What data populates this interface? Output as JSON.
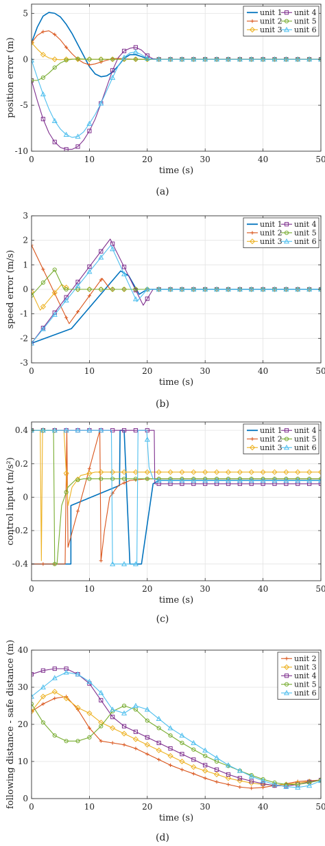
{
  "chart_data": [
    {
      "id": "a",
      "type": "line",
      "caption": "(a)",
      "xlabel": "time (s)",
      "ylabel": "position error (m)",
      "xlim": [
        0,
        50
      ],
      "ylim": [
        -10,
        6
      ],
      "xticks": [
        0,
        10,
        20,
        30,
        40,
        50
      ],
      "yticks": [
        -10,
        -5,
        0,
        5
      ],
      "grid": true,
      "legend": {
        "placement": "top-right",
        "columns": 2,
        "order": [
          "unit 1",
          "unit 4",
          "unit 2",
          "unit 5",
          "unit 3",
          "unit 6"
        ]
      },
      "series": [
        {
          "name": "unit 1",
          "color": "#0072BD",
          "marker": "none",
          "x": [
            0,
            1,
            2,
            3,
            4,
            5,
            6,
            7,
            8,
            9,
            10,
            11,
            12,
            13,
            14,
            15,
            16,
            17,
            18,
            19,
            20,
            22,
            50
          ],
          "y": [
            1.8,
            3.5,
            4.7,
            5.1,
            5.0,
            4.6,
            3.8,
            2.8,
            1.6,
            0.4,
            -0.8,
            -1.6,
            -1.9,
            -1.8,
            -1.4,
            -0.7,
            0.1,
            0.5,
            0.5,
            0.3,
            0.05,
            0,
            0
          ]
        },
        {
          "name": "unit 2",
          "color": "#D95319",
          "marker": "plus",
          "x": [
            0,
            1,
            2,
            3,
            4,
            5,
            6,
            7,
            8,
            9,
            10,
            11,
            12,
            13,
            14,
            15,
            16,
            18,
            20,
            50
          ],
          "y": [
            1.8,
            2.6,
            3.0,
            3.1,
            2.7,
            2.1,
            1.3,
            0.6,
            0.0,
            -0.4,
            -0.6,
            -0.5,
            -0.3,
            -0.1,
            0.05,
            0.1,
            0.05,
            0,
            0,
            0
          ]
        },
        {
          "name": "unit 3",
          "color": "#EDB120",
          "marker": "diamond",
          "x": [
            0,
            1,
            2,
            3,
            4,
            5,
            6,
            7,
            8,
            10,
            50
          ],
          "y": [
            1.8,
            1.1,
            0.5,
            0.15,
            0.0,
            -0.05,
            0.0,
            0.02,
            0,
            0,
            0
          ]
        },
        {
          "name": "unit 4",
          "color": "#7E2F8E",
          "marker": "square",
          "x": [
            0,
            1,
            2,
            3,
            4,
            5,
            6,
            7,
            8,
            9,
            10,
            11,
            12,
            13,
            14,
            15,
            16,
            17,
            18,
            19,
            20,
            21,
            22,
            50
          ],
          "y": [
            -2.3,
            -4.5,
            -6.5,
            -8.0,
            -9.0,
            -9.6,
            -9.8,
            -9.8,
            -9.5,
            -8.8,
            -7.8,
            -6.5,
            -4.8,
            -3.0,
            -1.2,
            0.2,
            0.9,
            1.2,
            1.3,
            1.0,
            0.4,
            0.05,
            0,
            0
          ]
        },
        {
          "name": "unit 5",
          "color": "#77AC30",
          "marker": "circle",
          "x": [
            0,
            1,
            2,
            3,
            4,
            5,
            6,
            7,
            8,
            10,
            12,
            50
          ],
          "y": [
            -2.3,
            -2.3,
            -2.0,
            -1.5,
            -0.9,
            -0.4,
            -0.1,
            0.0,
            0.05,
            0,
            0,
            0
          ]
        },
        {
          "name": "unit 6",
          "color": "#4DBEEE",
          "marker": "triangle",
          "x": [
            0,
            1,
            2,
            3,
            4,
            5,
            6,
            7,
            8,
            9,
            10,
            11,
            12,
            13,
            14,
            15,
            16,
            17,
            18,
            19,
            20,
            21,
            22,
            50
          ],
          "y": [
            -0.1,
            -2.0,
            -3.8,
            -5.4,
            -6.7,
            -7.6,
            -8.2,
            -8.5,
            -8.4,
            -7.9,
            -7.0,
            -6.0,
            -4.8,
            -3.4,
            -2.0,
            -0.7,
            0.2,
            0.7,
            0.8,
            0.5,
            0.1,
            0,
            0,
            0
          ]
        }
      ]
    },
    {
      "id": "b",
      "type": "line",
      "caption": "(b)",
      "xlabel": "time (s)",
      "ylabel": "speed error (m/s)",
      "xlim": [
        0,
        50
      ],
      "ylim": [
        -3,
        3
      ],
      "xticks": [
        0,
        10,
        20,
        30,
        40,
        50
      ],
      "yticks": [
        -3,
        -2,
        -1,
        0,
        1,
        2,
        3
      ],
      "grid": true,
      "legend": {
        "placement": "top-right",
        "columns": 2,
        "order": [
          "unit 1",
          "unit 4",
          "unit 2",
          "unit 5",
          "unit 3",
          "unit 6"
        ]
      },
      "series": [
        {
          "name": "unit 1",
          "color": "#0072BD",
          "marker": "none",
          "x": [
            0,
            6.9,
            15.4,
            16.8,
            18.6,
            20.0,
            50
          ],
          "y": [
            -2.2,
            -1.6,
            0.75,
            0.55,
            -0.2,
            0,
            0
          ]
        },
        {
          "name": "unit 2",
          "color": "#D95319",
          "marker": "plus",
          "x": [
            0,
            6.5,
            12.2,
            13.6,
            50
          ],
          "y": [
            1.8,
            -1.4,
            0.45,
            0,
            0
          ]
        },
        {
          "name": "unit 3",
          "color": "#EDB120",
          "marker": "diamond",
          "x": [
            0,
            1.5,
            5.2,
            6.5,
            50
          ],
          "y": [
            -0.1,
            -0.85,
            0.2,
            0,
            0
          ]
        },
        {
          "name": "unit 4",
          "color": "#7E2F8E",
          "marker": "square",
          "x": [
            0,
            13.6,
            19.3,
            21.0,
            50
          ],
          "y": [
            -2.2,
            2.05,
            -0.65,
            0,
            0
          ]
        },
        {
          "name": "unit 5",
          "color": "#77AC30",
          "marker": "circle",
          "x": [
            0,
            4.0,
            5.6,
            50
          ],
          "y": [
            -0.25,
            0.8,
            0,
            0
          ]
        },
        {
          "name": "unit 6",
          "color": "#4DBEEE",
          "marker": "triangle",
          "x": [
            0,
            13.7,
            18.2,
            20.0,
            50
          ],
          "y": [
            -2.2,
            1.8,
            -0.5,
            0,
            0
          ]
        }
      ]
    },
    {
      "id": "c",
      "type": "line",
      "caption": "(c)",
      "xlabel": "time (s)",
      "ylabel": "control input (m/s²)",
      "xlim": [
        0,
        50
      ],
      "ylim": [
        -0.5,
        0.45
      ],
      "xticks": [
        0,
        10,
        20,
        30,
        40,
        50
      ],
      "yticks": [
        -0.4,
        -0.2,
        0,
        0.2,
        0.4
      ],
      "grid": true,
      "legend": {
        "placement": "top-right",
        "columns": 2,
        "order": [
          "unit 1",
          "unit 4",
          "unit 2",
          "unit 5",
          "unit 3",
          "unit 6"
        ]
      },
      "series": [
        {
          "name": "unit 1",
          "color": "#0072BD",
          "marker": "none",
          "x": [
            0,
            6.8,
            6.8,
            15.2,
            15.3,
            16.0,
            17.0,
            19.0,
            21.0,
            22.0,
            50
          ],
          "y": [
            -0.4,
            -0.4,
            -0.05,
            0.07,
            0.4,
            0.4,
            -0.4,
            -0.4,
            0.08,
            0.1,
            0.1
          ]
        },
        {
          "name": "unit 2",
          "color": "#D95319",
          "marker": "plus",
          "x": [
            0,
            5.8,
            6.1,
            6.3,
            11.8,
            12.0,
            12.6,
            13.5,
            15.0,
            17.0,
            20.0,
            50
          ],
          "y": [
            -0.4,
            -0.4,
            0.4,
            -0.3,
            0.4,
            -0.38,
            -0.2,
            0.0,
            0.07,
            0.1,
            0.11,
            0.11
          ]
        },
        {
          "name": "unit 3",
          "color": "#EDB120",
          "marker": "diamond",
          "x": [
            0,
            1.5,
            1.7,
            1.9,
            3.0,
            5.6,
            6.3,
            7.0,
            8.5,
            11.0,
            50
          ],
          "y": [
            0.4,
            0.4,
            -0.38,
            0.4,
            0.4,
            0.4,
            -0.05,
            0.06,
            0.13,
            0.15,
            0.15
          ]
        },
        {
          "name": "unit 4",
          "color": "#7E2F8E",
          "marker": "square",
          "x": [
            0,
            19.8,
            20.2,
            21.2,
            21.3,
            22.0,
            50
          ],
          "y": [
            0.4,
            0.4,
            0.4,
            0.4,
            0.08,
            0.08,
            0.08
          ]
        },
        {
          "name": "unit 5",
          "color": "#77AC30",
          "marker": "circle",
          "x": [
            0,
            3.8,
            4.0,
            4.4,
            5.2,
            6.3,
            7.5,
            9.0,
            50
          ],
          "y": [
            0.4,
            0.4,
            -0.4,
            -0.4,
            -0.05,
            0.06,
            0.1,
            0.11,
            0.11
          ]
        },
        {
          "name": "unit 6",
          "color": "#4DBEEE",
          "marker": "triangle",
          "x": [
            0,
            13.8,
            14.0,
            18.2,
            18.4,
            19.9,
            20.3,
            21.0,
            22.0,
            50
          ],
          "y": [
            0.4,
            0.4,
            -0.4,
            -0.4,
            0.4,
            0.4,
            0.18,
            0.11,
            0.1,
            0.1
          ]
        }
      ]
    },
    {
      "id": "d",
      "type": "line",
      "caption": "(d)",
      "xlabel": "time (s)",
      "ylabel": "following distance - safe distance (m)",
      "xlim": [
        0,
        50
      ],
      "ylim": [
        0,
        40
      ],
      "xticks": [
        0,
        10,
        20,
        30,
        40,
        50
      ],
      "yticks": [
        0,
        10,
        20,
        30,
        40
      ],
      "grid": true,
      "legend": {
        "placement": "top-right",
        "columns": 1,
        "order": [
          "unit 2",
          "unit 3",
          "unit 4",
          "unit 5",
          "unit 6"
        ]
      },
      "series": [
        {
          "name": "unit 2",
          "color": "#D95319",
          "marker": "plus",
          "x": [
            0,
            2,
            4,
            6,
            8,
            10,
            12,
            14,
            16,
            18,
            20,
            22,
            24,
            26,
            28,
            30,
            32,
            34,
            36,
            38,
            40,
            42,
            44,
            46,
            48,
            50
          ],
          "y": [
            23.5,
            25.5,
            27.0,
            27.5,
            24.0,
            19.0,
            15.5,
            15.0,
            14.5,
            13.5,
            12.0,
            10.5,
            9.0,
            7.8,
            6.7,
            5.5,
            4.5,
            3.8,
            3.1,
            2.8,
            3.0,
            3.5,
            4.0,
            4.6,
            4.8,
            5.0
          ]
        },
        {
          "name": "unit 3",
          "color": "#EDB120",
          "marker": "diamond",
          "x": [
            0,
            2,
            4,
            6,
            8,
            10,
            12,
            14,
            16,
            18,
            20,
            22,
            24,
            26,
            28,
            30,
            32,
            34,
            36,
            38,
            40,
            42,
            44,
            46,
            48,
            50
          ],
          "y": [
            23.5,
            27.5,
            28.8,
            27.0,
            24.5,
            23.0,
            20.5,
            19.0,
            17.5,
            16.0,
            14.5,
            13.0,
            11.5,
            10.0,
            8.5,
            7.5,
            6.5,
            5.5,
            4.8,
            4.2,
            3.8,
            3.6,
            3.8,
            4.2,
            4.6,
            5.0
          ]
        },
        {
          "name": "unit 4",
          "color": "#7E2F8E",
          "marker": "square",
          "x": [
            0,
            2,
            4,
            6,
            8,
            10,
            12,
            14,
            16,
            18,
            20,
            22,
            24,
            26,
            28,
            30,
            32,
            34,
            36,
            38,
            40,
            42,
            44,
            46,
            48,
            50
          ],
          "y": [
            33.5,
            34.5,
            35.0,
            35.0,
            33.5,
            31.0,
            26.5,
            22.0,
            19.5,
            18.0,
            16.5,
            15.0,
            13.5,
            12.0,
            10.5,
            9.0,
            7.8,
            6.5,
            5.5,
            4.7,
            4.0,
            3.5,
            3.4,
            3.8,
            4.5,
            5.0
          ]
        },
        {
          "name": "unit 5",
          "color": "#77AC30",
          "marker": "circle",
          "x": [
            0,
            2,
            4,
            6,
            8,
            10,
            12,
            14,
            16,
            18,
            20,
            22,
            24,
            26,
            28,
            30,
            32,
            34,
            36,
            38,
            40,
            42,
            44,
            46,
            48,
            50
          ],
          "y": [
            25.5,
            20.5,
            17.0,
            15.5,
            15.5,
            16.5,
            19.5,
            23.5,
            25.0,
            24.0,
            21.0,
            19.0,
            17.0,
            15.0,
            13.2,
            11.5,
            10.0,
            8.8,
            7.5,
            6.3,
            5.2,
            4.3,
            3.8,
            3.8,
            4.3,
            5.0
          ]
        },
        {
          "name": "unit 6",
          "color": "#4DBEEE",
          "marker": "triangle",
          "x": [
            0,
            2,
            4,
            6,
            8,
            10,
            12,
            14,
            16,
            18,
            20,
            22,
            24,
            26,
            28,
            30,
            32,
            34,
            36,
            38,
            40,
            42,
            44,
            46,
            48,
            50
          ],
          "y": [
            27.5,
            30.0,
            32.5,
            34.0,
            33.5,
            31.5,
            28.5,
            24.0,
            23.0,
            25.0,
            24.0,
            21.5,
            19.0,
            17.0,
            15.0,
            13.0,
            11.0,
            9.0,
            7.5,
            6.0,
            4.8,
            3.8,
            3.2,
            3.0,
            3.5,
            4.8
          ]
        }
      ]
    }
  ]
}
